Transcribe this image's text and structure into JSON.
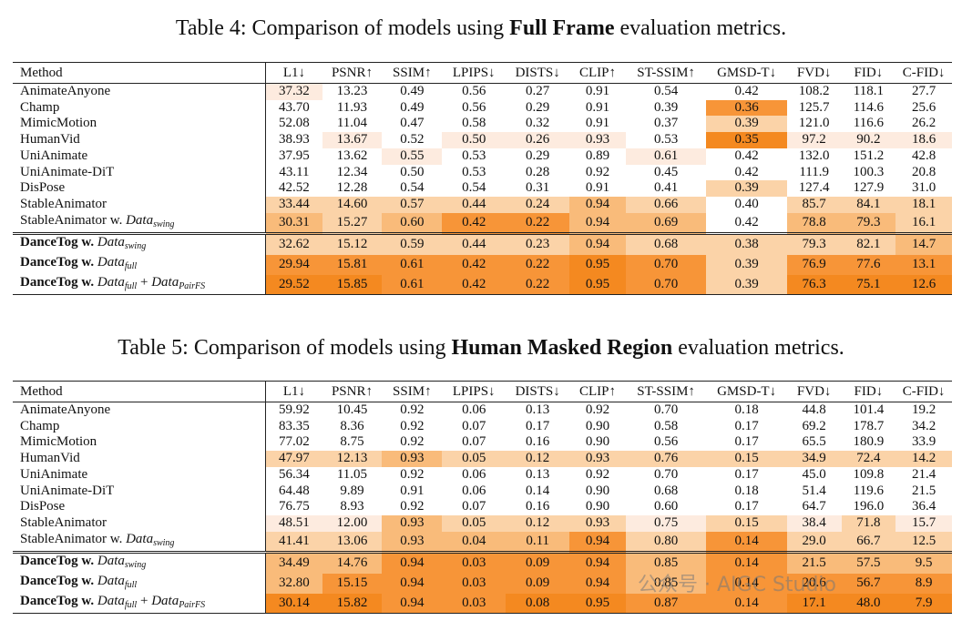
{
  "colors": {
    "c1": "#fdebdf",
    "c2": "#fbd3a8",
    "c3": "#f9bb7a",
    "c4": "#f79538",
    "c5": "#f48920"
  },
  "table4": {
    "caption_prefix": "Table 4: Comparison of models using ",
    "caption_bold": "Full Frame",
    "caption_suffix": " evaluation metrics.",
    "headers": [
      "Method",
      "L1↓",
      "PSNR↑",
      "SSIM↑",
      "LPIPS↓",
      "DISTS↓",
      "CLIP↑",
      "ST-SSIM↑",
      "GMSD-T↓",
      "FVD↓",
      "FID↓",
      "C-FID↓"
    ],
    "rows": [
      {
        "method": "AnimateAnyone",
        "values": [
          "37.32",
          "13.23",
          "0.49",
          "0.56",
          "0.27",
          "0.91",
          "0.54",
          "0.42",
          "108.2",
          "118.1",
          "27.7"
        ],
        "shade": [
          1,
          0,
          0,
          0,
          0,
          0,
          0,
          0,
          0,
          0,
          0
        ]
      },
      {
        "method": "Champ",
        "values": [
          "43.70",
          "11.93",
          "0.49",
          "0.56",
          "0.29",
          "0.91",
          "0.39",
          "0.36",
          "125.7",
          "114.6",
          "25.6"
        ],
        "shade": [
          0,
          0,
          0,
          0,
          0,
          0,
          0,
          4,
          0,
          0,
          0
        ]
      },
      {
        "method": "MimicMotion",
        "values": [
          "52.08",
          "11.04",
          "0.47",
          "0.58",
          "0.32",
          "0.91",
          "0.37",
          "0.39",
          "121.0",
          "116.6",
          "26.2"
        ],
        "shade": [
          0,
          0,
          0,
          0,
          0,
          0,
          0,
          2,
          0,
          0,
          0
        ]
      },
      {
        "method": "HumanVid",
        "values": [
          "38.93",
          "13.67",
          "0.52",
          "0.50",
          "0.26",
          "0.93",
          "0.53",
          "0.35",
          "97.2",
          "90.2",
          "18.6"
        ],
        "shade": [
          0,
          1,
          0,
          1,
          1,
          1,
          0,
          5,
          1,
          1,
          1
        ]
      },
      {
        "method": "UniAnimate",
        "values": [
          "37.95",
          "13.62",
          "0.55",
          "0.53",
          "0.29",
          "0.89",
          "0.61",
          "0.42",
          "132.0",
          "151.2",
          "42.8"
        ],
        "shade": [
          0,
          0,
          1,
          0,
          0,
          0,
          1,
          0,
          0,
          0,
          0
        ]
      },
      {
        "method": "UniAnimate-DiT",
        "values": [
          "43.11",
          "12.34",
          "0.50",
          "0.53",
          "0.28",
          "0.92",
          "0.45",
          "0.42",
          "111.9",
          "100.3",
          "20.8"
        ],
        "shade": [
          0,
          0,
          0,
          0,
          0,
          0,
          0,
          0,
          0,
          0,
          0
        ]
      },
      {
        "method": "DisPose",
        "values": [
          "42.52",
          "12.28",
          "0.54",
          "0.54",
          "0.31",
          "0.91",
          "0.41",
          "0.39",
          "127.4",
          "127.9",
          "31.0"
        ],
        "shade": [
          0,
          0,
          0,
          0,
          0,
          0,
          0,
          2,
          0,
          0,
          0
        ]
      },
      {
        "method": "StableAnimator",
        "values": [
          "33.44",
          "14.60",
          "0.57",
          "0.44",
          "0.24",
          "0.94",
          "0.66",
          "0.40",
          "85.7",
          "84.1",
          "18.1"
        ],
        "shade": [
          2,
          2,
          2,
          2,
          2,
          3,
          2,
          0,
          2,
          2,
          2
        ]
      },
      {
        "method": "StableAnimator w. Data",
        "sub": "swing",
        "values": [
          "30.31",
          "15.27",
          "0.60",
          "0.42",
          "0.22",
          "0.94",
          "0.69",
          "0.42",
          "78.8",
          "79.3",
          "16.1"
        ],
        "shade": [
          3,
          2,
          3,
          4,
          4,
          3,
          3,
          0,
          3,
          3,
          2
        ]
      }
    ],
    "ours": [
      {
        "method": "DanceTog w. ",
        "ital": "Data",
        "sub": "swing",
        "extra": "",
        "values": [
          "32.62",
          "15.12",
          "0.59",
          "0.44",
          "0.23",
          "0.94",
          "0.68",
          "0.38",
          "79.3",
          "82.1",
          "14.7"
        ],
        "shade": [
          2,
          2,
          2,
          2,
          2,
          3,
          2,
          2,
          2,
          2,
          3
        ]
      },
      {
        "method": "DanceTog w. ",
        "ital": "Data",
        "sub": "full",
        "extra": "",
        "values": [
          "29.94",
          "15.81",
          "0.61",
          "0.42",
          "0.22",
          "0.95",
          "0.70",
          "0.39",
          "76.9",
          "77.6",
          "13.1"
        ],
        "shade": [
          4,
          4,
          4,
          4,
          4,
          5,
          4,
          2,
          4,
          4,
          4
        ]
      },
      {
        "method": "DanceTog w. ",
        "ital": "Data",
        "sub": "full",
        "extra": "PairFS",
        "values": [
          "29.52",
          "15.85",
          "0.61",
          "0.42",
          "0.22",
          "0.95",
          "0.70",
          "0.39",
          "76.3",
          "75.1",
          "12.6"
        ],
        "shade": [
          5,
          5,
          4,
          4,
          4,
          5,
          4,
          2,
          5,
          5,
          5
        ]
      }
    ]
  },
  "table5": {
    "caption_prefix": "Table 5: Comparison of models using ",
    "caption_bold": "Human Masked Region",
    "caption_suffix": " evaluation metrics.",
    "headers": [
      "Method",
      "L1↓",
      "PSNR↑",
      "SSIM↑",
      "LPIPS↓",
      "DISTS↓",
      "CLIP↑",
      "ST-SSIM↑",
      "GMSD-T↓",
      "FVD↓",
      "FID↓",
      "C-FID↓"
    ],
    "rows": [
      {
        "method": "AnimateAnyone",
        "values": [
          "59.92",
          "10.45",
          "0.92",
          "0.06",
          "0.13",
          "0.92",
          "0.70",
          "0.18",
          "44.8",
          "101.4",
          "19.2"
        ],
        "shade": [
          0,
          0,
          0,
          0,
          0,
          0,
          0,
          0,
          0,
          0,
          0
        ]
      },
      {
        "method": "Champ",
        "values": [
          "83.35",
          "8.36",
          "0.92",
          "0.07",
          "0.17",
          "0.90",
          "0.58",
          "0.17",
          "69.2",
          "178.7",
          "34.2"
        ],
        "shade": [
          0,
          0,
          0,
          0,
          0,
          0,
          0,
          0,
          0,
          0,
          0
        ]
      },
      {
        "method": "MimicMotion",
        "values": [
          "77.02",
          "8.75",
          "0.92",
          "0.07",
          "0.16",
          "0.90",
          "0.56",
          "0.17",
          "65.5",
          "180.9",
          "33.9"
        ],
        "shade": [
          0,
          0,
          0,
          0,
          0,
          0,
          0,
          0,
          0,
          0,
          0
        ]
      },
      {
        "method": "HumanVid",
        "values": [
          "47.97",
          "12.13",
          "0.93",
          "0.05",
          "0.12",
          "0.93",
          "0.76",
          "0.15",
          "34.9",
          "72.4",
          "14.2"
        ],
        "shade": [
          2,
          2,
          3,
          2,
          2,
          2,
          2,
          2,
          2,
          2,
          2
        ]
      },
      {
        "method": "UniAnimate",
        "values": [
          "56.34",
          "11.05",
          "0.92",
          "0.06",
          "0.13",
          "0.92",
          "0.70",
          "0.17",
          "45.0",
          "109.8",
          "21.4"
        ],
        "shade": [
          0,
          0,
          0,
          0,
          0,
          0,
          0,
          0,
          0,
          0,
          0
        ]
      },
      {
        "method": "UniAnimate-DiT",
        "values": [
          "64.48",
          "9.89",
          "0.91",
          "0.06",
          "0.14",
          "0.90",
          "0.68",
          "0.18",
          "51.4",
          "119.6",
          "21.5"
        ],
        "shade": [
          0,
          0,
          0,
          0,
          0,
          0,
          0,
          0,
          0,
          0,
          0
        ]
      },
      {
        "method": "DisPose",
        "values": [
          "76.75",
          "8.93",
          "0.92",
          "0.07",
          "0.16",
          "0.90",
          "0.60",
          "0.17",
          "64.7",
          "196.0",
          "36.4"
        ],
        "shade": [
          0,
          0,
          0,
          0,
          0,
          0,
          0,
          0,
          0,
          0,
          0
        ]
      },
      {
        "method": "StableAnimator",
        "values": [
          "48.51",
          "12.00",
          "0.93",
          "0.05",
          "0.12",
          "0.93",
          "0.75",
          "0.15",
          "38.4",
          "71.8",
          "15.7"
        ],
        "shade": [
          1,
          1,
          3,
          2,
          2,
          2,
          1,
          2,
          1,
          2,
          1
        ]
      },
      {
        "method": "StableAnimator w. Data",
        "sub": "swing",
        "values": [
          "41.41",
          "13.06",
          "0.93",
          "0.04",
          "0.11",
          "0.94",
          "0.80",
          "0.14",
          "29.0",
          "66.7",
          "12.5"
        ],
        "shade": [
          2,
          2,
          3,
          3,
          3,
          4,
          2,
          4,
          2,
          2,
          2
        ]
      }
    ],
    "ours": [
      {
        "method": "DanceTog w. ",
        "ital": "Data",
        "sub": "swing",
        "extra": "",
        "values": [
          "34.49",
          "14.76",
          "0.94",
          "0.03",
          "0.09",
          "0.94",
          "0.85",
          "0.14",
          "21.5",
          "57.5",
          "9.5"
        ],
        "shade": [
          3,
          3,
          4,
          4,
          4,
          4,
          3,
          4,
          3,
          3,
          3
        ]
      },
      {
        "method": "DanceTog w. ",
        "ital": "Data",
        "sub": "full",
        "extra": "",
        "values": [
          "32.80",
          "15.15",
          "0.94",
          "0.03",
          "0.09",
          "0.94",
          "0.85",
          "0.14",
          "20.6",
          "56.7",
          "8.9"
        ],
        "shade": [
          3,
          4,
          4,
          4,
          4,
          4,
          3,
          4,
          4,
          4,
          4
        ]
      },
      {
        "method": "DanceTog w. ",
        "ital": "Data",
        "sub": "full",
        "extra": "PairFS",
        "values": [
          "30.14",
          "15.82",
          "0.94",
          "0.03",
          "0.08",
          "0.95",
          "0.87",
          "0.14",
          "17.1",
          "48.0",
          "7.9"
        ],
        "shade": [
          5,
          5,
          4,
          4,
          5,
          5,
          4,
          4,
          5,
          5,
          5
        ]
      }
    ]
  },
  "watermark": "公众号 · AIGC Studio"
}
